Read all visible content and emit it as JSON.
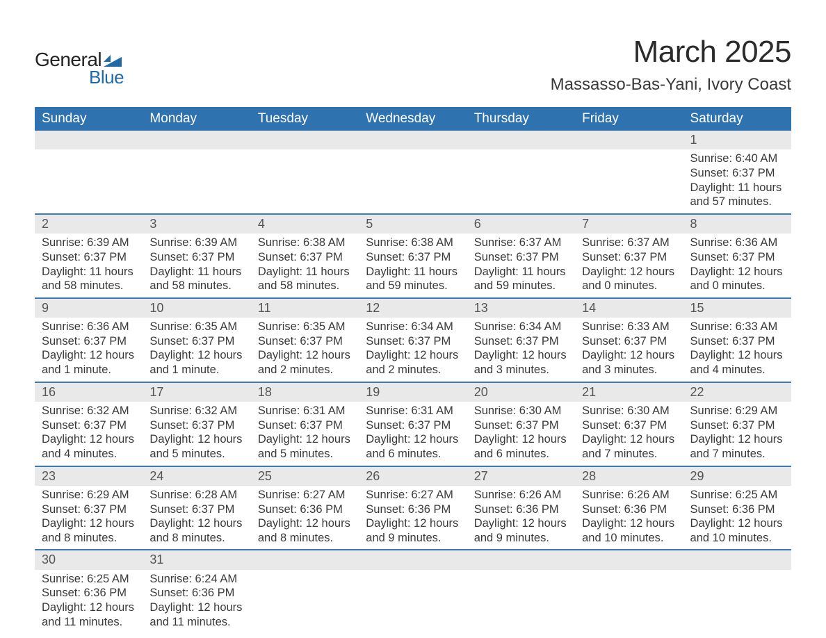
{
  "logo": {
    "word1": "General",
    "word2": "Blue",
    "shape_color": "#1e6aa8"
  },
  "header": {
    "title": "March 2025",
    "location": "Massasso-Bas-Yani, Ivory Coast"
  },
  "calendar": {
    "day_headers": [
      "Sunday",
      "Monday",
      "Tuesday",
      "Wednesday",
      "Thursday",
      "Friday",
      "Saturday"
    ],
    "header_bg": "#2f72b0",
    "header_color": "#ffffff",
    "row_border_color": "#3d7ab3",
    "daynum_bg": "#e9e9e9",
    "text_color": "#3a3a3a",
    "weeks": [
      [
        {
          "empty": true
        },
        {
          "empty": true
        },
        {
          "empty": true
        },
        {
          "empty": true
        },
        {
          "empty": true
        },
        {
          "empty": true
        },
        {
          "day": "1",
          "sunrise": "Sunrise: 6:40 AM",
          "sunset": "Sunset: 6:37 PM",
          "daylight": "Daylight: 11 hours and 57 minutes."
        }
      ],
      [
        {
          "day": "2",
          "sunrise": "Sunrise: 6:39 AM",
          "sunset": "Sunset: 6:37 PM",
          "daylight": "Daylight: 11 hours and 58 minutes."
        },
        {
          "day": "3",
          "sunrise": "Sunrise: 6:39 AM",
          "sunset": "Sunset: 6:37 PM",
          "daylight": "Daylight: 11 hours and 58 minutes."
        },
        {
          "day": "4",
          "sunrise": "Sunrise: 6:38 AM",
          "sunset": "Sunset: 6:37 PM",
          "daylight": "Daylight: 11 hours and 58 minutes."
        },
        {
          "day": "5",
          "sunrise": "Sunrise: 6:38 AM",
          "sunset": "Sunset: 6:37 PM",
          "daylight": "Daylight: 11 hours and 59 minutes."
        },
        {
          "day": "6",
          "sunrise": "Sunrise: 6:37 AM",
          "sunset": "Sunset: 6:37 PM",
          "daylight": "Daylight: 11 hours and 59 minutes."
        },
        {
          "day": "7",
          "sunrise": "Sunrise: 6:37 AM",
          "sunset": "Sunset: 6:37 PM",
          "daylight": "Daylight: 12 hours and 0 minutes."
        },
        {
          "day": "8",
          "sunrise": "Sunrise: 6:36 AM",
          "sunset": "Sunset: 6:37 PM",
          "daylight": "Daylight: 12 hours and 0 minutes."
        }
      ],
      [
        {
          "day": "9",
          "sunrise": "Sunrise: 6:36 AM",
          "sunset": "Sunset: 6:37 PM",
          "daylight": "Daylight: 12 hours and 1 minute."
        },
        {
          "day": "10",
          "sunrise": "Sunrise: 6:35 AM",
          "sunset": "Sunset: 6:37 PM",
          "daylight": "Daylight: 12 hours and 1 minute."
        },
        {
          "day": "11",
          "sunrise": "Sunrise: 6:35 AM",
          "sunset": "Sunset: 6:37 PM",
          "daylight": "Daylight: 12 hours and 2 minutes."
        },
        {
          "day": "12",
          "sunrise": "Sunrise: 6:34 AM",
          "sunset": "Sunset: 6:37 PM",
          "daylight": "Daylight: 12 hours and 2 minutes."
        },
        {
          "day": "13",
          "sunrise": "Sunrise: 6:34 AM",
          "sunset": "Sunset: 6:37 PM",
          "daylight": "Daylight: 12 hours and 3 minutes."
        },
        {
          "day": "14",
          "sunrise": "Sunrise: 6:33 AM",
          "sunset": "Sunset: 6:37 PM",
          "daylight": "Daylight: 12 hours and 3 minutes."
        },
        {
          "day": "15",
          "sunrise": "Sunrise: 6:33 AM",
          "sunset": "Sunset: 6:37 PM",
          "daylight": "Daylight: 12 hours and 4 minutes."
        }
      ],
      [
        {
          "day": "16",
          "sunrise": "Sunrise: 6:32 AM",
          "sunset": "Sunset: 6:37 PM",
          "daylight": "Daylight: 12 hours and 4 minutes."
        },
        {
          "day": "17",
          "sunrise": "Sunrise: 6:32 AM",
          "sunset": "Sunset: 6:37 PM",
          "daylight": "Daylight: 12 hours and 5 minutes."
        },
        {
          "day": "18",
          "sunrise": "Sunrise: 6:31 AM",
          "sunset": "Sunset: 6:37 PM",
          "daylight": "Daylight: 12 hours and 5 minutes."
        },
        {
          "day": "19",
          "sunrise": "Sunrise: 6:31 AM",
          "sunset": "Sunset: 6:37 PM",
          "daylight": "Daylight: 12 hours and 6 minutes."
        },
        {
          "day": "20",
          "sunrise": "Sunrise: 6:30 AM",
          "sunset": "Sunset: 6:37 PM",
          "daylight": "Daylight: 12 hours and 6 minutes."
        },
        {
          "day": "21",
          "sunrise": "Sunrise: 6:30 AM",
          "sunset": "Sunset: 6:37 PM",
          "daylight": "Daylight: 12 hours and 7 minutes."
        },
        {
          "day": "22",
          "sunrise": "Sunrise: 6:29 AM",
          "sunset": "Sunset: 6:37 PM",
          "daylight": "Daylight: 12 hours and 7 minutes."
        }
      ],
      [
        {
          "day": "23",
          "sunrise": "Sunrise: 6:29 AM",
          "sunset": "Sunset: 6:37 PM",
          "daylight": "Daylight: 12 hours and 8 minutes."
        },
        {
          "day": "24",
          "sunrise": "Sunrise: 6:28 AM",
          "sunset": "Sunset: 6:37 PM",
          "daylight": "Daylight: 12 hours and 8 minutes."
        },
        {
          "day": "25",
          "sunrise": "Sunrise: 6:27 AM",
          "sunset": "Sunset: 6:36 PM",
          "daylight": "Daylight: 12 hours and 8 minutes."
        },
        {
          "day": "26",
          "sunrise": "Sunrise: 6:27 AM",
          "sunset": "Sunset: 6:36 PM",
          "daylight": "Daylight: 12 hours and 9 minutes."
        },
        {
          "day": "27",
          "sunrise": "Sunrise: 6:26 AM",
          "sunset": "Sunset: 6:36 PM",
          "daylight": "Daylight: 12 hours and 9 minutes."
        },
        {
          "day": "28",
          "sunrise": "Sunrise: 6:26 AM",
          "sunset": "Sunset: 6:36 PM",
          "daylight": "Daylight: 12 hours and 10 minutes."
        },
        {
          "day": "29",
          "sunrise": "Sunrise: 6:25 AM",
          "sunset": "Sunset: 6:36 PM",
          "daylight": "Daylight: 12 hours and 10 minutes."
        }
      ],
      [
        {
          "day": "30",
          "sunrise": "Sunrise: 6:25 AM",
          "sunset": "Sunset: 6:36 PM",
          "daylight": "Daylight: 12 hours and 11 minutes."
        },
        {
          "day": "31",
          "sunrise": "Sunrise: 6:24 AM",
          "sunset": "Sunset: 6:36 PM",
          "daylight": "Daylight: 12 hours and 11 minutes."
        },
        {
          "empty": true
        },
        {
          "empty": true
        },
        {
          "empty": true
        },
        {
          "empty": true
        },
        {
          "empty": true
        }
      ]
    ]
  }
}
